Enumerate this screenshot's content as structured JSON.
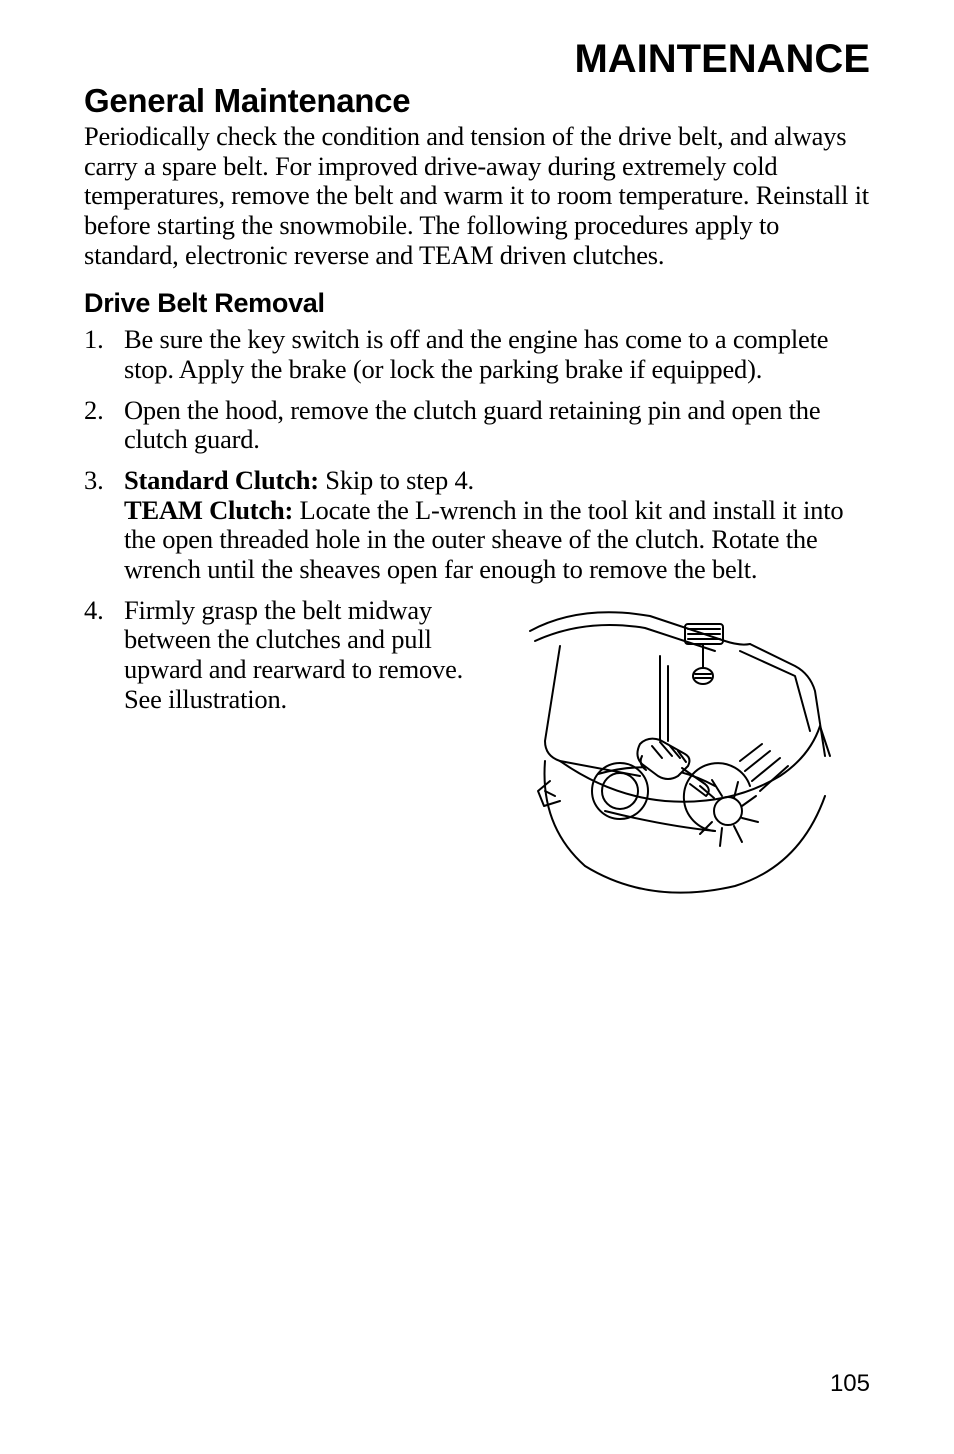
{
  "chapter_title": "MAINTENANCE",
  "section_title": "General Maintenance",
  "intro_paragraph": "Periodically check the condition and tension of the drive belt, and always carry a spare belt.  For improved drive-away during extremely cold temperatures, remove the belt and warm it to room temperature. Reinstall it before starting the snowmobile. The following procedures apply to standard, electronic reverse and TEAM driven clutches.",
  "subsection_title": "Drive Belt Removal",
  "steps": [
    {
      "parts": [
        {
          "text": "Be sure the key switch is off and the engine has come to a complete stop.  Apply the brake (or lock the parking brake if equipped)."
        }
      ]
    },
    {
      "parts": [
        {
          "text": "Open the hood, remove the clutch guard retaining pin and open the clutch guard."
        }
      ]
    },
    {
      "parts": [
        {
          "text": "Standard Clutch:",
          "bold": true
        },
        {
          "text": "  Skip to step 4."
        },
        {
          "br": true
        },
        {
          "text": "TEAM Clutch:",
          "bold": true
        },
        {
          "text": " Locate the L-wrench in the tool kit and install it into the open threaded hole in the outer sheave of the clutch. Rotate the wrench until the sheaves open far enough to remove the belt."
        }
      ]
    },
    {
      "has_image": true,
      "parts": [
        {
          "text": "Firmly grasp the belt midway between the clutches and pull upward and rearward to remove. See illustration."
        }
      ]
    }
  ],
  "page_number": "105",
  "illustration": {
    "alt": "drive-belt-removal-illustration",
    "stroke": "#000000",
    "fill": "#ffffff"
  }
}
